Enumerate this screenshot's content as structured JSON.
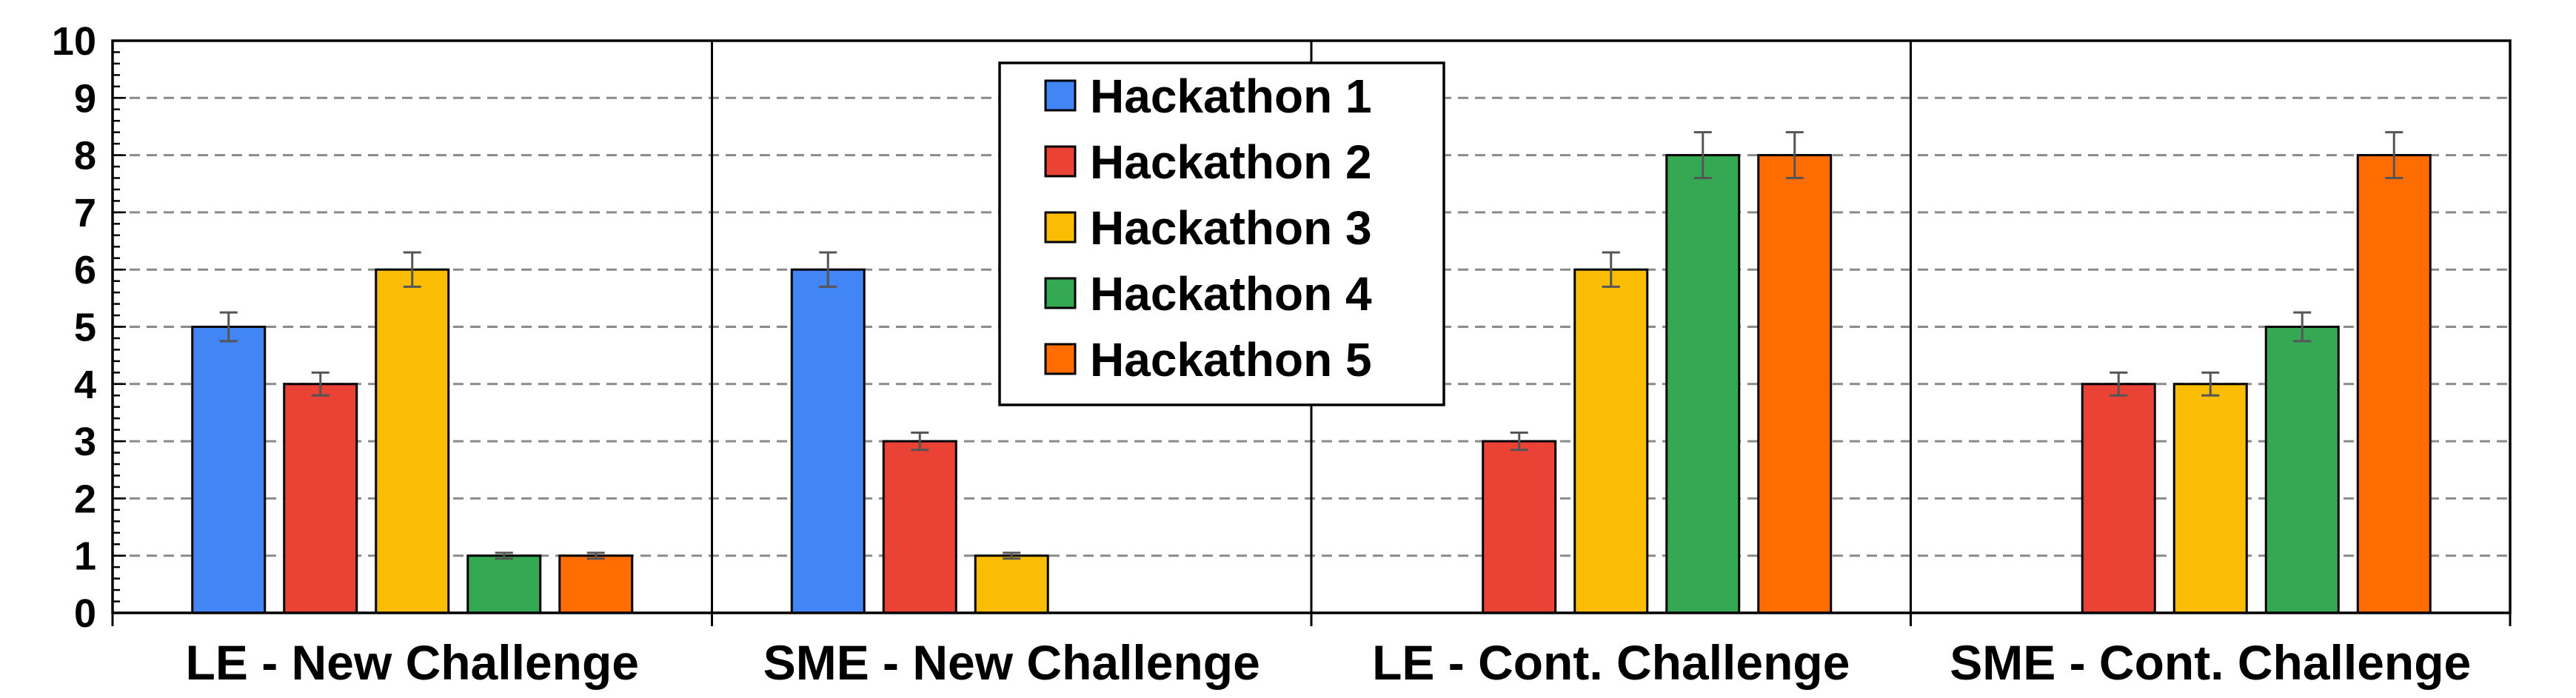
{
  "colors": {
    "Hackathon 1": "#4285f4",
    "Hackathon 2": "#ea4335",
    "Hackathon 3": "#fbbc04",
    "Hackathon 4": "#34a853",
    "Hackathon 5": "#ff6d01"
  },
  "chart_data": {
    "type": "bar",
    "title": "",
    "xlabel": "",
    "ylabel": "",
    "ylim": [
      0,
      10
    ],
    "yticks": [
      0,
      1,
      2,
      3,
      4,
      5,
      6,
      7,
      8,
      9,
      10
    ],
    "grid": "horizontal dashed",
    "legend_position": "top-center",
    "categories": [
      "LE - New Challenge",
      "SME - New Challenge",
      "LE - Cont. Challenge",
      "SME - Cont. Challenge"
    ],
    "series": [
      {
        "name": "Hackathon 1",
        "values": [
          5,
          6,
          null,
          null
        ],
        "errors": [
          0.25,
          0.3,
          null,
          null
        ]
      },
      {
        "name": "Hackathon 2",
        "values": [
          4,
          3,
          3,
          4
        ],
        "errors": [
          0.2,
          0.15,
          0.15,
          0.2
        ]
      },
      {
        "name": "Hackathon 3",
        "values": [
          6,
          1,
          6,
          4
        ],
        "errors": [
          0.3,
          0.05,
          0.3,
          0.2
        ]
      },
      {
        "name": "Hackathon 4",
        "values": [
          1,
          null,
          8,
          5
        ],
        "errors": [
          0.05,
          null,
          0.4,
          0.25
        ]
      },
      {
        "name": "Hackathon 5",
        "values": [
          1,
          null,
          8,
          8
        ],
        "errors": [
          0.05,
          null,
          0.4,
          0.4
        ]
      }
    ]
  }
}
